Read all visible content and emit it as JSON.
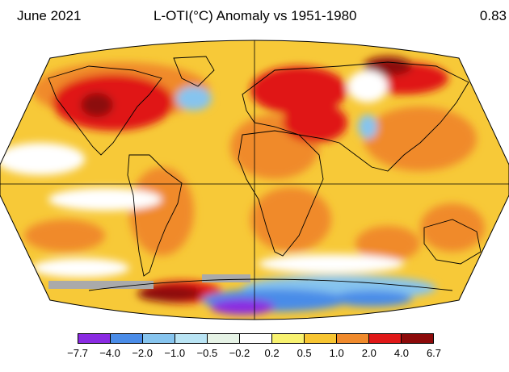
{
  "header": {
    "date": "June 2021",
    "title": "L-OTI(°C) Anomaly vs 1951-1980",
    "global_mean": "0.83"
  },
  "legend": {
    "colors": [
      "#8a2be2",
      "#4a8ce8",
      "#86c4ee",
      "#b9e4f4",
      "#e6f3e6",
      "#ffffff",
      "#f8f270",
      "#f7c532",
      "#f08a2c",
      "#e01818",
      "#8c0a0a"
    ],
    "ticks": [
      "−7.7",
      "−4.0",
      "−2.0",
      "−1.0",
      "−0.5",
      "−0.2",
      "0.2",
      "0.5",
      "1.0",
      "2.0",
      "4.0",
      "6.7"
    ]
  },
  "map_colors": {
    "ocean_base": "#f7c938",
    "warm": "#f08a2c",
    "hot": "#e01818",
    "extreme": "#8c0a0a",
    "neutral": "#ffffff",
    "cool": "#86c4ee",
    "cold": "#4a8ce8",
    "coldest": "#8a2be2",
    "no_data": "#aaaaaa"
  }
}
